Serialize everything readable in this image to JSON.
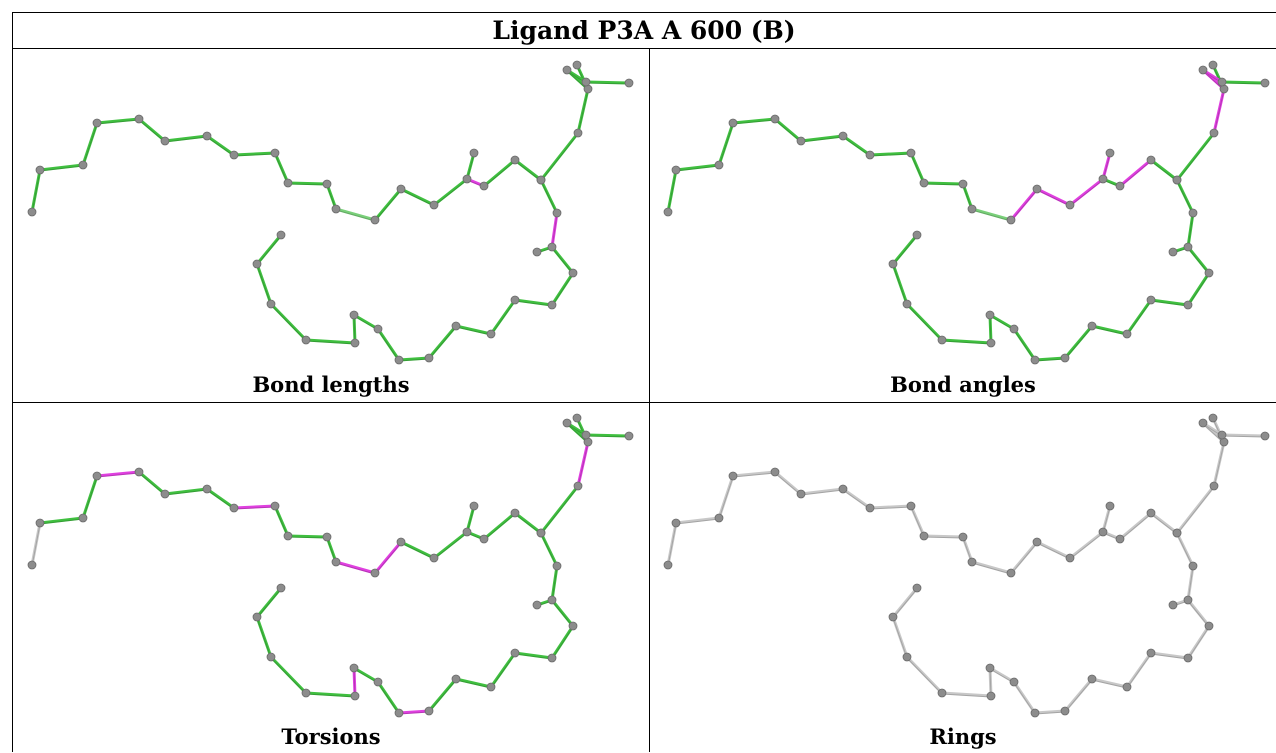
{
  "title": "Ligand P3A A 600 (B)",
  "panels": [
    {
      "caption": "Bond lengths"
    },
    {
      "caption": "Bond angles"
    },
    {
      "caption": "Torsions"
    },
    {
      "caption": "Rings"
    }
  ],
  "colors": {
    "good": "#40c040",
    "outlier": "#e040e0",
    "neutral": "#c8c8c8",
    "atom": "#8c8c8c"
  }
}
